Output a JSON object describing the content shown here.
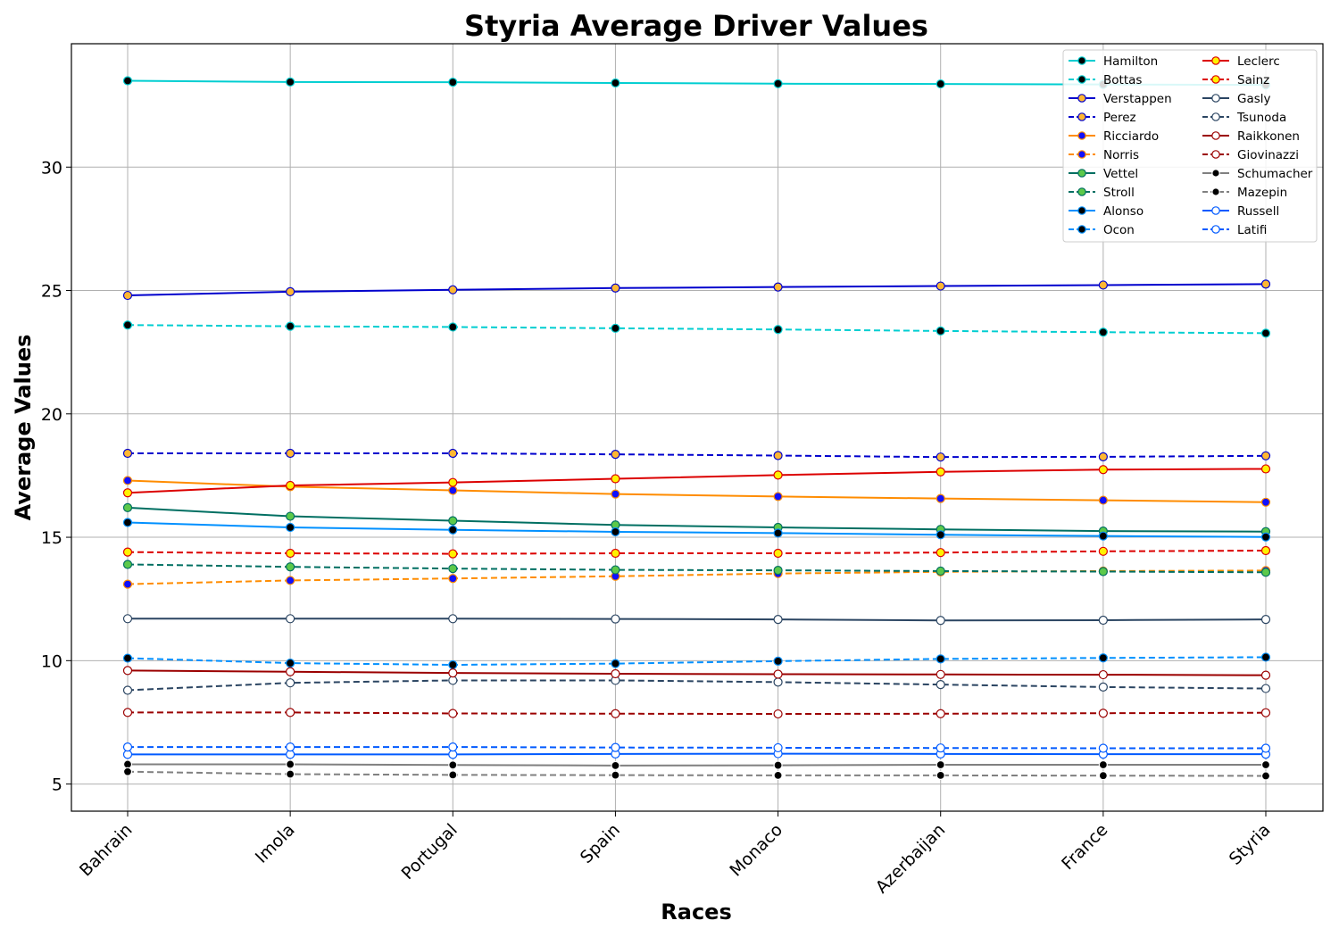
{
  "chart_data": {
    "type": "line",
    "title": "Styria Average Driver Values",
    "xlabel": "Races",
    "ylabel": "Average Values",
    "categories": [
      "Bahrain",
      "Imola",
      "Portugal",
      "Spain",
      "Monaco",
      "Azerbaijan",
      "France",
      "Styria"
    ],
    "ylim": [
      3.9,
      35
    ],
    "yticks": [
      5,
      10,
      15,
      20,
      25,
      30
    ],
    "grid": true,
    "legend_position": "top-right",
    "series": [
      {
        "name": "Hamilton",
        "color": "#00CED1",
        "dash": "solid",
        "marker_face": "#000000",
        "marker_edge": "#00CED1",
        "values": [
          33.5,
          33.45,
          33.44,
          33.41,
          33.38,
          33.37,
          33.35,
          33.33
        ]
      },
      {
        "name": "Bottas",
        "color": "#00CED1",
        "dash": "dashed",
        "marker_face": "#000000",
        "marker_edge": "#00CED1",
        "values": [
          23.6,
          23.55,
          23.52,
          23.47,
          23.42,
          23.36,
          23.31,
          23.27
        ]
      },
      {
        "name": "Verstappen",
        "color": "#0000CD",
        "dash": "solid",
        "marker_face": "#FFB732",
        "marker_edge": "#0000CD",
        "values": [
          24.8,
          24.95,
          25.03,
          25.1,
          25.14,
          25.18,
          25.22,
          25.26
        ]
      },
      {
        "name": "Perez",
        "color": "#0000CD",
        "dash": "dashed",
        "marker_face": "#FFB732",
        "marker_edge": "#0000CD",
        "values": [
          18.4,
          18.4,
          18.4,
          18.36,
          18.31,
          18.25,
          18.26,
          18.3
        ]
      },
      {
        "name": "Ricciardo",
        "color": "#FF8C00",
        "dash": "solid",
        "marker_face": "#1010FF",
        "marker_edge": "#FF8C00",
        "values": [
          17.3,
          17.05,
          16.9,
          16.75,
          16.65,
          16.57,
          16.5,
          16.42
        ]
      },
      {
        "name": "Norris",
        "color": "#FF8C00",
        "dash": "dashed",
        "marker_face": "#1010FF",
        "marker_edge": "#FF8C00",
        "values": [
          13.1,
          13.25,
          13.33,
          13.42,
          13.53,
          13.6,
          13.63,
          13.65
        ]
      },
      {
        "name": "Vettel",
        "color": "#006F62",
        "dash": "solid",
        "marker_face": "#5CC94A",
        "marker_edge": "#006F62",
        "values": [
          16.2,
          15.85,
          15.67,
          15.5,
          15.4,
          15.32,
          15.25,
          15.23
        ]
      },
      {
        "name": "Stroll",
        "color": "#006F62",
        "dash": "dashed",
        "marker_face": "#5CC94A",
        "marker_edge": "#006F62",
        "values": [
          13.9,
          13.8,
          13.73,
          13.68,
          13.66,
          13.63,
          13.61,
          13.58
        ]
      },
      {
        "name": "Alonso",
        "color": "#0090FF",
        "dash": "solid",
        "marker_face": "#000000",
        "marker_edge": "#0090FF",
        "values": [
          15.6,
          15.4,
          15.3,
          15.22,
          15.17,
          15.1,
          15.05,
          15.01
        ]
      },
      {
        "name": "Ocon",
        "color": "#0090FF",
        "dash": "dashed",
        "marker_face": "#000000",
        "marker_edge": "#0090FF",
        "values": [
          10.1,
          9.9,
          9.83,
          9.88,
          9.98,
          10.07,
          10.11,
          10.14
        ]
      },
      {
        "name": "Leclerc",
        "color": "#DC0000",
        "dash": "solid",
        "marker_face": "#FFF200",
        "marker_edge": "#DC0000",
        "values": [
          16.8,
          17.1,
          17.22,
          17.37,
          17.52,
          17.65,
          17.74,
          17.77
        ]
      },
      {
        "name": "Sainz",
        "color": "#DC0000",
        "dash": "dashed",
        "marker_face": "#FFF200",
        "marker_edge": "#DC0000",
        "values": [
          14.4,
          14.35,
          14.33,
          14.35,
          14.35,
          14.38,
          14.43,
          14.46
        ]
      },
      {
        "name": "Gasly",
        "color": "#2B4562",
        "dash": "solid",
        "marker_face": "#FFFFFF",
        "marker_edge": "#2B4562",
        "values": [
          11.7,
          11.7,
          11.7,
          11.69,
          11.67,
          11.63,
          11.64,
          11.67
        ]
      },
      {
        "name": "Tsunoda",
        "color": "#2B4562",
        "dash": "dashed",
        "marker_face": "#FFFFFF",
        "marker_edge": "#2B4562",
        "values": [
          8.8,
          9.1,
          9.2,
          9.2,
          9.13,
          9.03,
          8.93,
          8.87
        ]
      },
      {
        "name": "Raikkonen",
        "color": "#9B0000",
        "dash": "solid",
        "marker_face": "#FFFFFF",
        "marker_edge": "#9B0000",
        "values": [
          9.6,
          9.55,
          9.5,
          9.47,
          9.45,
          9.44,
          9.43,
          9.41
        ]
      },
      {
        "name": "Giovinazzi",
        "color": "#9B0000",
        "dash": "dashed",
        "marker_face": "#FFFFFF",
        "marker_edge": "#9B0000",
        "values": [
          7.9,
          7.9,
          7.86,
          7.85,
          7.84,
          7.85,
          7.87,
          7.89
        ]
      },
      {
        "name": "Schumacher",
        "color": "#808080",
        "dash": "solid",
        "marker_face": "#000000",
        "marker_edge": "#FFFFFF",
        "values": [
          5.8,
          5.8,
          5.77,
          5.75,
          5.76,
          5.78,
          5.78,
          5.78
        ]
      },
      {
        "name": "Mazepin",
        "color": "#808080",
        "dash": "dashed",
        "marker_face": "#000000",
        "marker_edge": "#FFFFFF",
        "values": [
          5.5,
          5.4,
          5.37,
          5.36,
          5.35,
          5.35,
          5.34,
          5.33
        ]
      },
      {
        "name": "Russell",
        "color": "#005AFF",
        "dash": "solid",
        "marker_face": "#FFFFFF",
        "marker_edge": "#005AFF",
        "values": [
          6.2,
          6.2,
          6.2,
          6.22,
          6.23,
          6.22,
          6.21,
          6.21
        ]
      },
      {
        "name": "Latifi",
        "color": "#005AFF",
        "dash": "dashed",
        "marker_face": "#FFFFFF",
        "marker_edge": "#005AFF",
        "values": [
          6.5,
          6.5,
          6.5,
          6.48,
          6.47,
          6.46,
          6.45,
          6.45
        ]
      }
    ]
  }
}
